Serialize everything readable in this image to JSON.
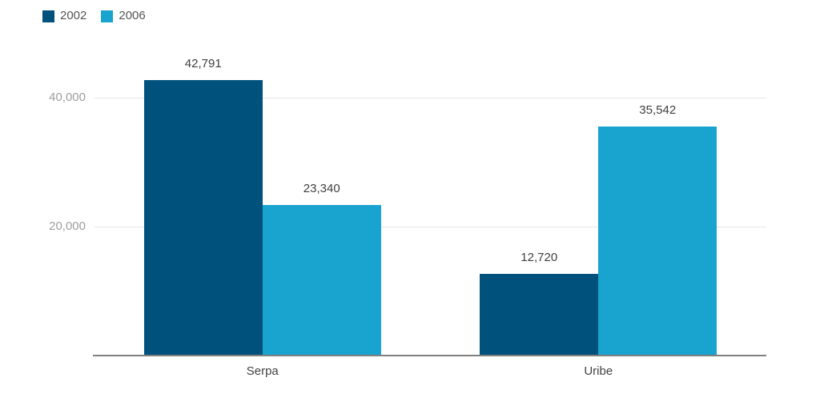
{
  "chart_data": {
    "type": "bar",
    "title": "",
    "categories": [
      "Serpa",
      "Uribe"
    ],
    "series": [
      {
        "name": "2002",
        "color": "#00527D",
        "values": [
          42791,
          12720
        ],
        "value_labels": [
          "42,791",
          "12,720"
        ]
      },
      {
        "name": "2006",
        "color": "#19A3CF",
        "values": [
          23340,
          35542
        ],
        "value_labels": [
          "23,340",
          "35,542"
        ]
      }
    ],
    "xlabel": "",
    "ylabel": "",
    "ylim": [
      0,
      50000
    ],
    "y_ticks": [
      {
        "value": 20000,
        "label": "20,000"
      },
      {
        "value": 40000,
        "label": "40,000"
      }
    ],
    "grid": "horizontal",
    "legend_position": "top-left",
    "colors": {
      "gridline": "#E6E6E6",
      "axis_line": "#808080",
      "tick_label": "#9E9E9E",
      "value_label": "#3F3F3F",
      "category_label": "#424242",
      "legend_text": "#545454",
      "background": "#FFFFFF"
    }
  }
}
